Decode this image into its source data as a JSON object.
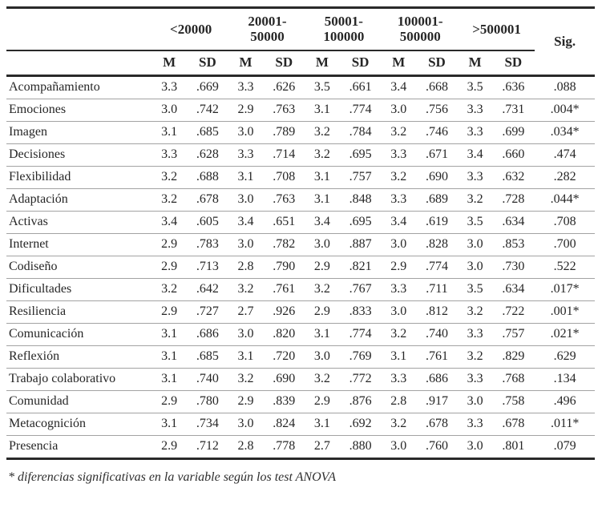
{
  "table": {
    "group_headers": [
      "<20000",
      "20001-\n50000",
      "50001-\n100000",
      "100001-\n500000",
      ">500001"
    ],
    "sig_label": "Sig.",
    "m_label": "M",
    "sd_label": "SD",
    "rows": [
      {
        "label": "Acompañamiento",
        "values": [
          "3.3",
          ".669",
          "3.3",
          ".626",
          "3.5",
          ".661",
          "3.4",
          ".668",
          "3.5",
          ".636"
        ],
        "sig": ".088"
      },
      {
        "label": "Emociones",
        "values": [
          "3.0",
          ".742",
          "2.9",
          ".763",
          "3.1",
          ".774",
          "3.0",
          ".756",
          "3.3",
          ".731"
        ],
        "sig": ".004*"
      },
      {
        "label": "Imagen",
        "values": [
          "3.1",
          ".685",
          "3.0",
          ".789",
          "3.2",
          ".784",
          "3.2",
          ".746",
          "3.3",
          ".699"
        ],
        "sig": ".034*"
      },
      {
        "label": "Decisiones",
        "values": [
          "3.3",
          ".628",
          "3.3",
          ".714",
          "3.2",
          ".695",
          "3.3",
          ".671",
          "3.4",
          ".660"
        ],
        "sig": ".474"
      },
      {
        "label": "Flexibilidad",
        "values": [
          "3.2",
          ".688",
          "3.1",
          ".708",
          "3.1",
          ".757",
          "3.2",
          ".690",
          "3.3",
          ".632"
        ],
        "sig": ".282"
      },
      {
        "label": "Adaptación",
        "values": [
          "3.2",
          ".678",
          "3.0",
          ".763",
          "3.1",
          ".848",
          "3.3",
          ".689",
          "3.2",
          ".728"
        ],
        "sig": ".044*"
      },
      {
        "label": "Activas",
        "values": [
          "3.4",
          ".605",
          "3.4",
          ".651",
          "3.4",
          ".695",
          "3.4",
          ".619",
          "3.5",
          ".634"
        ],
        "sig": ".708"
      },
      {
        "label": "Internet",
        "values": [
          "2.9",
          ".783",
          "3.0",
          ".782",
          "3.0",
          ".887",
          "3.0",
          ".828",
          "3.0",
          ".853"
        ],
        "sig": ".700"
      },
      {
        "label": "Codiseño",
        "values": [
          "2.9",
          ".713",
          "2.8",
          ".790",
          "2.9",
          ".821",
          "2.9",
          ".774",
          "3.0",
          ".730"
        ],
        "sig": ".522"
      },
      {
        "label": "Dificultades",
        "values": [
          "3.2",
          ".642",
          "3.2",
          ".761",
          "3.2",
          ".767",
          "3.3",
          ".711",
          "3.5",
          ".634"
        ],
        "sig": ".017*"
      },
      {
        "label": "Resiliencia",
        "values": [
          "2.9",
          ".727",
          "2.7",
          ".926",
          "2.9",
          ".833",
          "3.0",
          ".812",
          "3.2",
          ".722"
        ],
        "sig": ".001*"
      },
      {
        "label": "Comunicación",
        "values": [
          "3.1",
          ".686",
          "3.0",
          ".820",
          "3.1",
          ".774",
          "3.2",
          ".740",
          "3.3",
          ".757"
        ],
        "sig": ".021*"
      },
      {
        "label": "Reflexión",
        "values": [
          "3.1",
          ".685",
          "3.1",
          ".720",
          "3.0",
          ".769",
          "3.1",
          ".761",
          "3.2",
          ".829"
        ],
        "sig": ".629"
      },
      {
        "label": "Trabajo colaborativo",
        "values": [
          "3.1",
          ".740",
          "3.2",
          ".690",
          "3.2",
          ".772",
          "3.3",
          ".686",
          "3.3",
          ".768"
        ],
        "sig": ".134"
      },
      {
        "label": "Comunidad",
        "values": [
          "2.9",
          ".780",
          "2.9",
          ".839",
          "2.9",
          ".876",
          "2.8",
          ".917",
          "3.0",
          ".758"
        ],
        "sig": ".496"
      },
      {
        "label": "Metacognición",
        "values": [
          "3.1",
          ".734",
          "3.0",
          ".824",
          "3.1",
          ".692",
          "3.2",
          ".678",
          "3.3",
          ".678"
        ],
        "sig": ".011*"
      },
      {
        "label": "Presencia",
        "values": [
          "2.9",
          ".712",
          "2.8",
          ".778",
          "2.7",
          ".880",
          "3.0",
          ".760",
          "3.0",
          ".801"
        ],
        "sig": ".079"
      }
    ],
    "footnote": "* diferencias significativas en la variable según los test ANOVA"
  }
}
